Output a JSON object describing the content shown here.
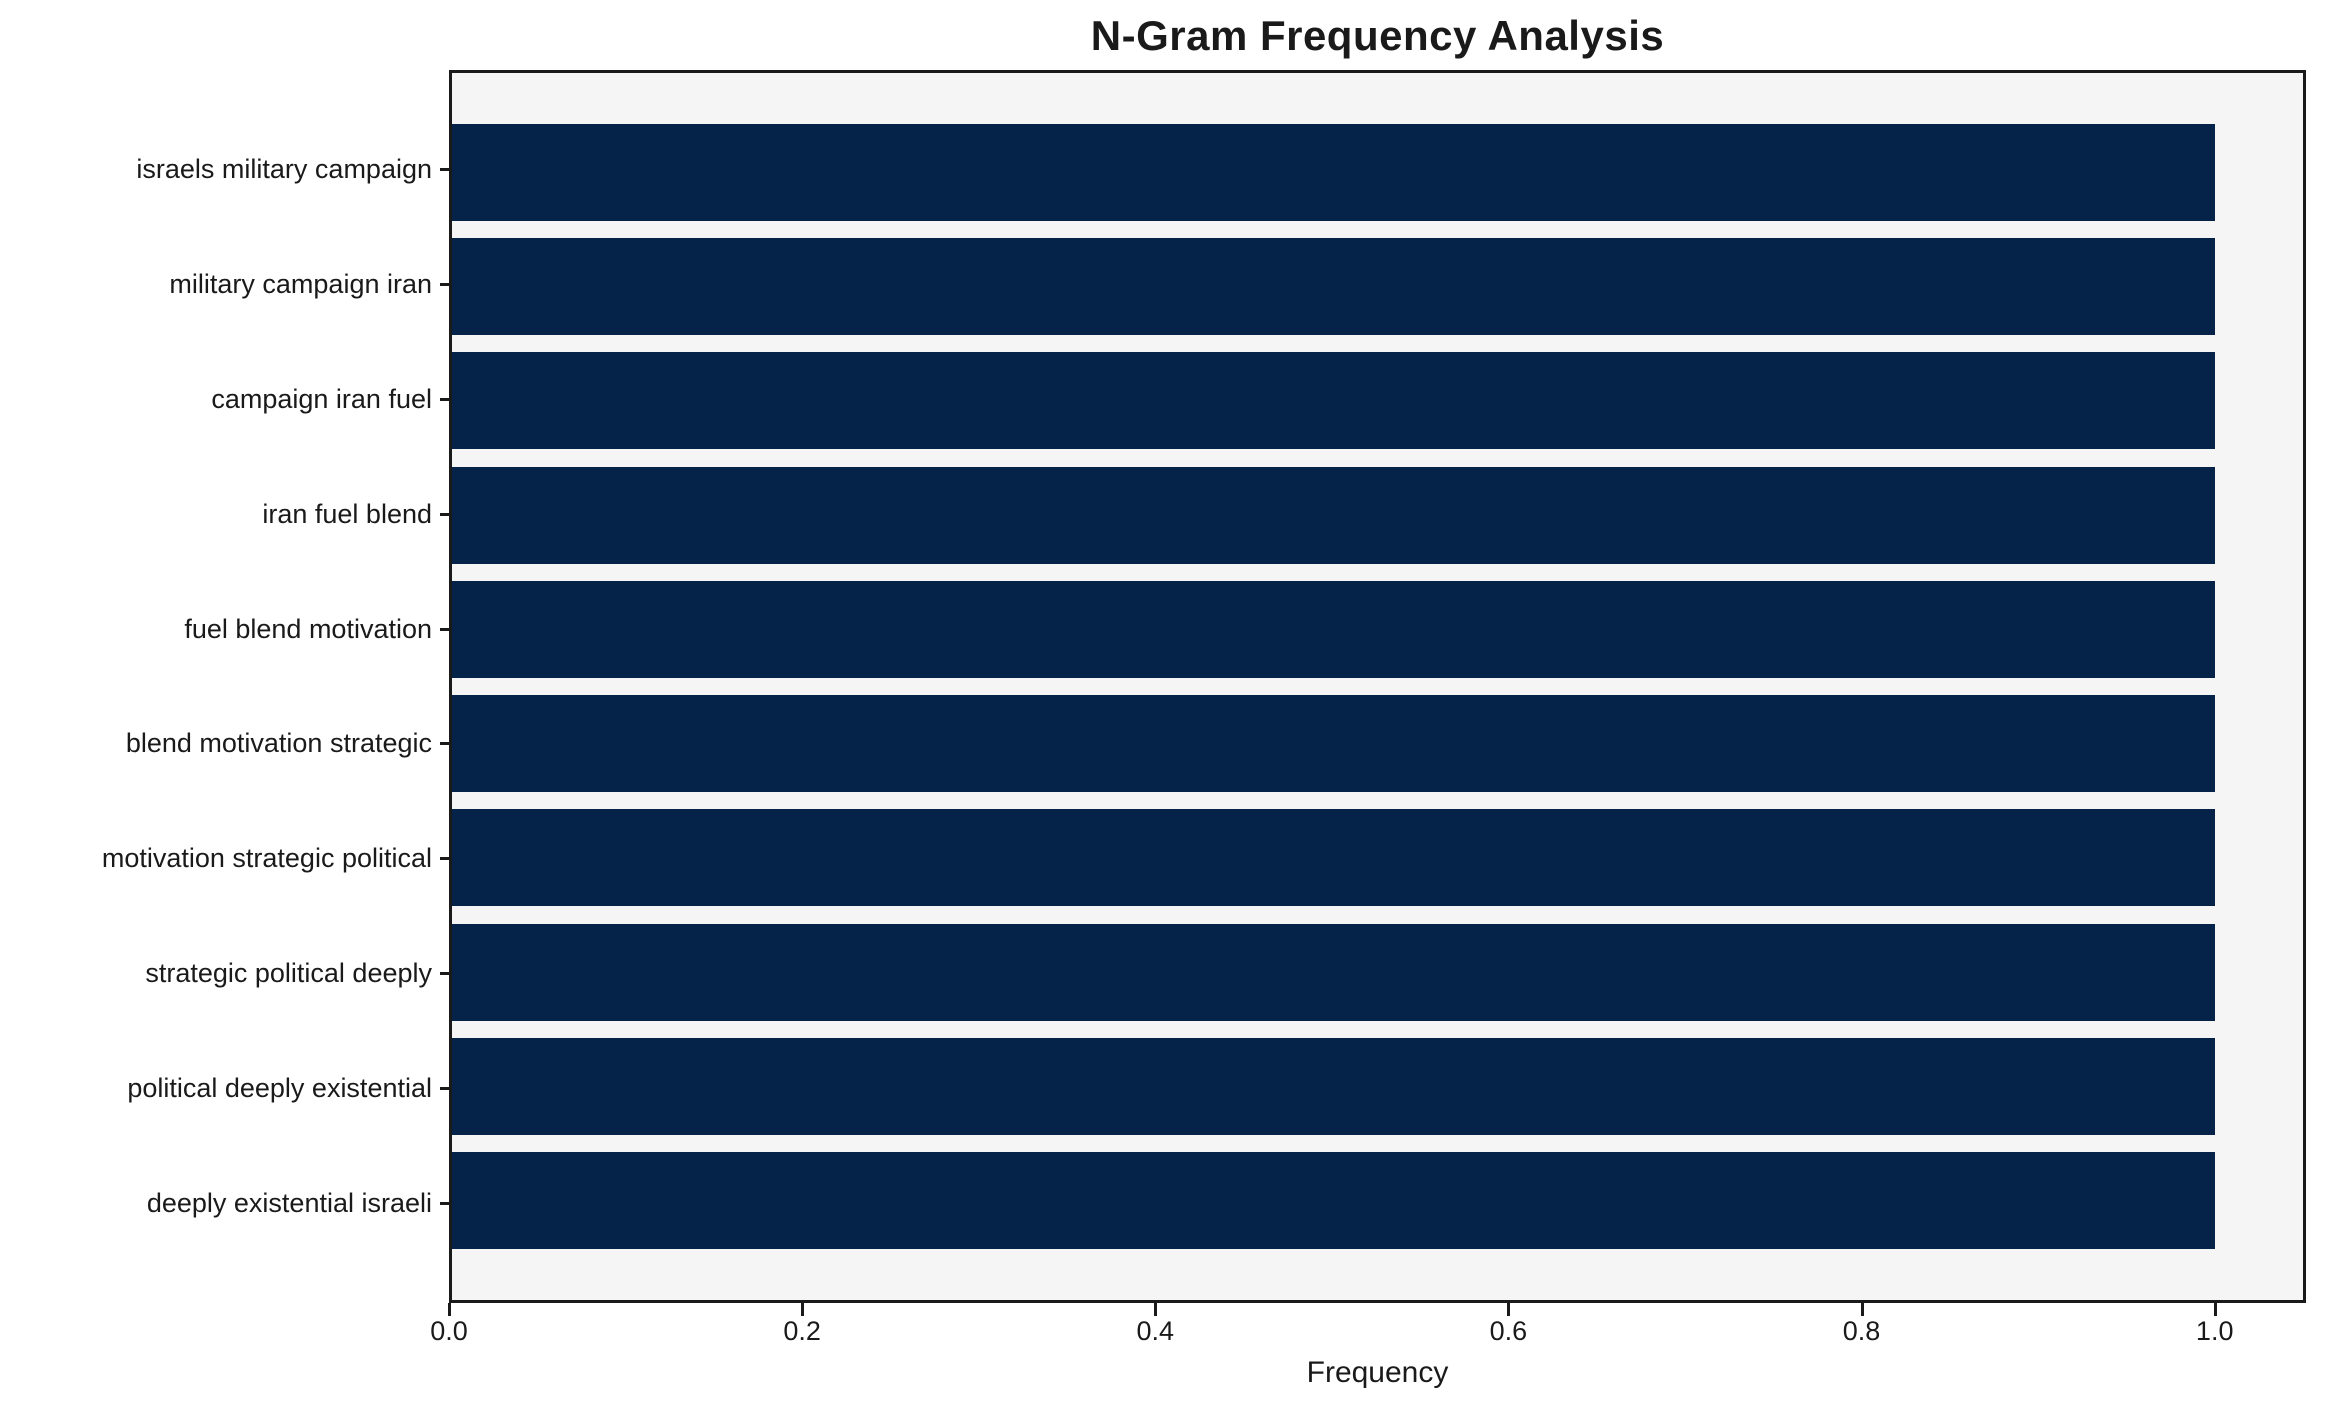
{
  "chart_data": {
    "type": "bar",
    "orientation": "horizontal",
    "title": "N-Gram Frequency Analysis",
    "xlabel": "Frequency",
    "ylabel": "",
    "categories": [
      "israels military campaign",
      "military campaign iran",
      "campaign iran fuel",
      "iran fuel blend",
      "fuel blend motivation",
      "blend motivation strategic",
      "motivation strategic political",
      "strategic political deeply",
      "political deeply existential",
      "deeply existential israeli"
    ],
    "values": [
      1.0,
      1.0,
      1.0,
      1.0,
      1.0,
      1.0,
      1.0,
      1.0,
      1.0,
      1.0
    ],
    "x_ticks": [
      0.0,
      0.2,
      0.4,
      0.6,
      0.8,
      1.0
    ],
    "x_tick_labels": [
      "0.0",
      "0.2",
      "0.4",
      "0.6",
      "0.8",
      "1.0"
    ],
    "xlim": [
      0,
      1.05
    ],
    "grid": false,
    "legend": null,
    "colors": {
      "bar": "#052249",
      "plot_background": "#f5f5f5",
      "figure_background": "#ffffff",
      "spine": "#1a1a1a",
      "text": "#1a1a1a"
    }
  }
}
